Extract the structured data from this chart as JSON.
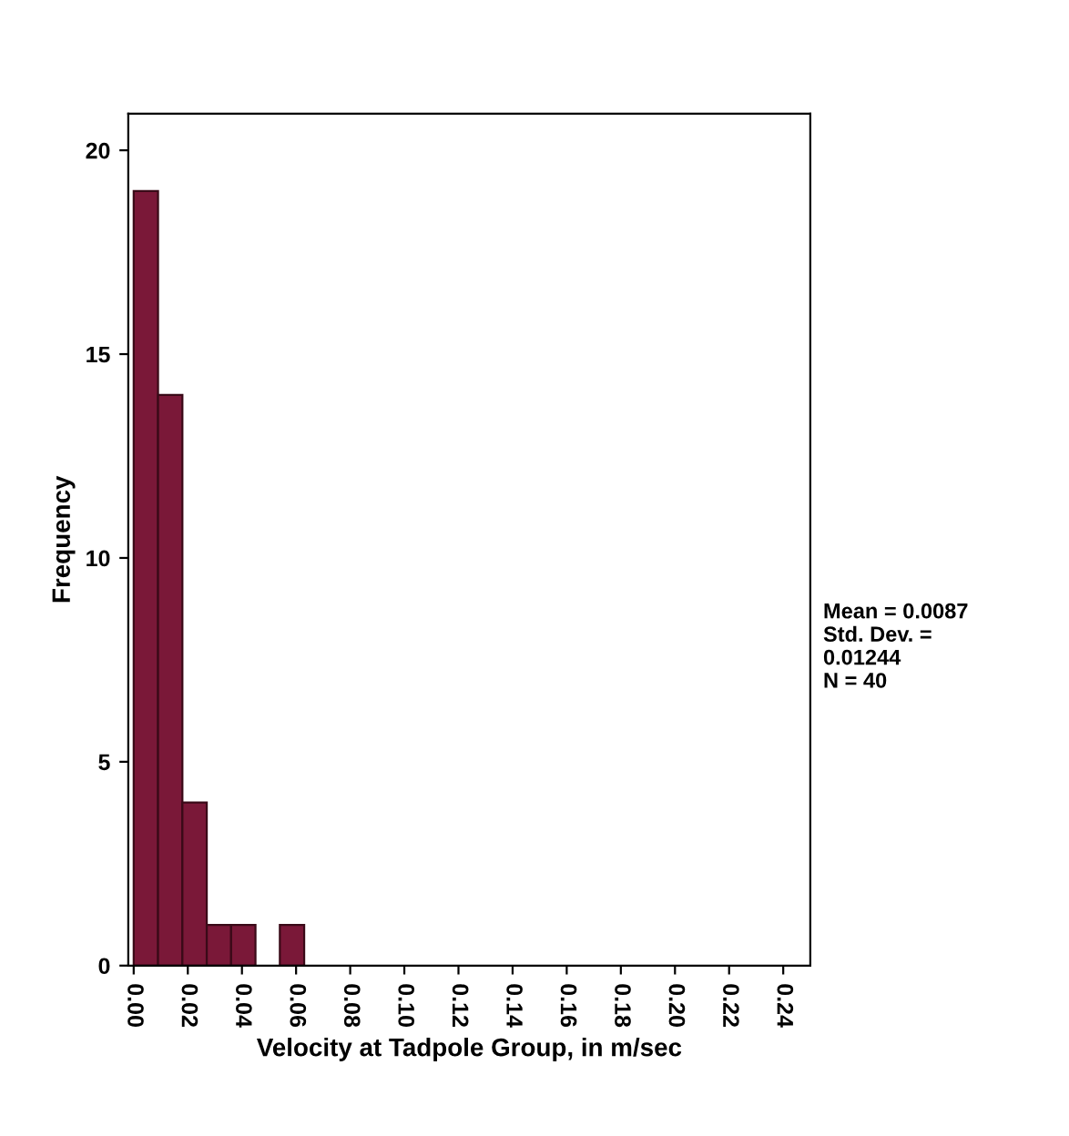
{
  "chart_data": {
    "type": "histogram",
    "xlabel": "Velocity at Tadpole Group, in m/sec",
    "ylabel": "Frequency",
    "bins": [
      0,
      0.009,
      0.018,
      0.027,
      0.036,
      0.045,
      0.054,
      0.063
    ],
    "values": [
      19,
      14,
      4,
      1,
      1,
      0,
      1
    ],
    "color": "#7a1838",
    "xlim": [
      -0.002,
      0.25
    ],
    "xticks": [
      {
        "value": 0,
        "label": "0.00"
      },
      0.02,
      0.04,
      0.06,
      0.08,
      {
        "value": 0.1,
        "label": "0.10"
      },
      0.12,
      0.14,
      0.16,
      0.18,
      {
        "value": 0.2,
        "label": "0.20"
      },
      0.22,
      0.24
    ],
    "ylim": [
      0,
      20.9
    ],
    "yticks": [
      0,
      5,
      10,
      15,
      20
    ],
    "grid": false,
    "legend": false,
    "annotations": [
      "Mean = 0.0087\nStd. Dev. =\n0.01244\nN = 40"
    ]
  }
}
